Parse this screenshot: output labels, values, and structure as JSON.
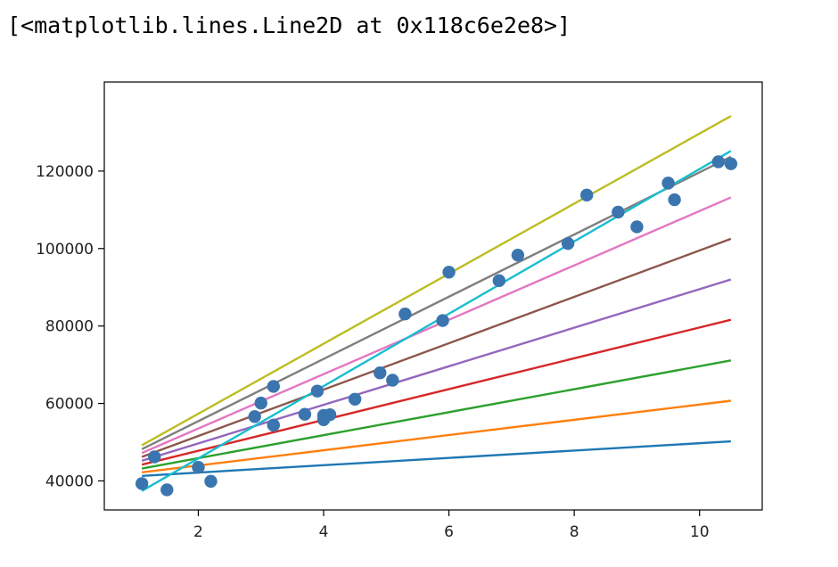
{
  "output": {
    "repr_text": "[<matplotlib.lines.Line2D at 0x118c6e2e8>]"
  },
  "chart_data": {
    "type": "scatter",
    "title": "",
    "xlabel": "",
    "ylabel": "",
    "xlim": [
      0.5,
      11.0
    ],
    "ylim": [
      32500,
      143000
    ],
    "xticks": [
      2,
      4,
      6,
      8,
      10
    ],
    "yticks": [
      40000,
      60000,
      80000,
      100000,
      120000
    ],
    "grid": false,
    "legend": "none",
    "scatter": {
      "color": "#3b75af",
      "points": [
        {
          "x": 1.1,
          "y": 39300
        },
        {
          "x": 1.3,
          "y": 46200
        },
        {
          "x": 1.5,
          "y": 37700
        },
        {
          "x": 2.0,
          "y": 43500
        },
        {
          "x": 2.2,
          "y": 39900
        },
        {
          "x": 2.9,
          "y": 56600
        },
        {
          "x": 3.0,
          "y": 60100
        },
        {
          "x": 3.2,
          "y": 54400
        },
        {
          "x": 3.2,
          "y": 64400
        },
        {
          "x": 3.7,
          "y": 57200
        },
        {
          "x": 3.9,
          "y": 63200
        },
        {
          "x": 4.0,
          "y": 55800
        },
        {
          "x": 4.0,
          "y": 56900
        },
        {
          "x": 4.1,
          "y": 57100
        },
        {
          "x": 4.5,
          "y": 61100
        },
        {
          "x": 4.9,
          "y": 67900
        },
        {
          "x": 5.1,
          "y": 66000
        },
        {
          "x": 5.3,
          "y": 83100
        },
        {
          "x": 5.9,
          "y": 81400
        },
        {
          "x": 6.0,
          "y": 93900
        },
        {
          "x": 6.8,
          "y": 91700
        },
        {
          "x": 7.1,
          "y": 98300
        },
        {
          "x": 7.9,
          "y": 101300
        },
        {
          "x": 8.2,
          "y": 113800
        },
        {
          "x": 8.7,
          "y": 109400
        },
        {
          "x": 9.0,
          "y": 105600
        },
        {
          "x": 9.5,
          "y": 116900
        },
        {
          "x": 9.6,
          "y": 112600
        },
        {
          "x": 10.3,
          "y": 122400
        },
        {
          "x": 10.5,
          "y": 121900
        }
      ]
    },
    "lines": [
      {
        "color": "#1f77b4",
        "x": [
          1.1,
          10.5
        ],
        "y": [
          41300,
          50200
        ]
      },
      {
        "color": "#ff7f0e",
        "x": [
          1.1,
          10.5
        ],
        "y": [
          42200,
          60700
        ]
      },
      {
        "color": "#2ca02c",
        "x": [
          1.1,
          10.5
        ],
        "y": [
          43200,
          71100
        ]
      },
      {
        "color": "#d62728",
        "x": [
          1.1,
          10.5
        ],
        "y": [
          44200,
          81600
        ]
      },
      {
        "color": "#9467bd",
        "x": [
          1.1,
          10.5
        ],
        "y": [
          45200,
          92000
        ]
      },
      {
        "color": "#8c564b",
        "x": [
          1.1,
          10.5
        ],
        "y": [
          46200,
          102500
        ]
      },
      {
        "color": "#e377c2",
        "x": [
          1.1,
          10.5
        ],
        "y": [
          47200,
          113200
        ]
      },
      {
        "color": "#7f7f7f",
        "x": [
          1.1,
          10.5
        ],
        "y": [
          48200,
          123700
        ]
      },
      {
        "color": "#bcbd22",
        "x": [
          1.1,
          10.5
        ],
        "y": [
          49200,
          134200
        ]
      },
      {
        "color": "#17becf",
        "x": [
          1.1,
          10.5
        ],
        "y": [
          37400,
          125200
        ]
      }
    ]
  }
}
